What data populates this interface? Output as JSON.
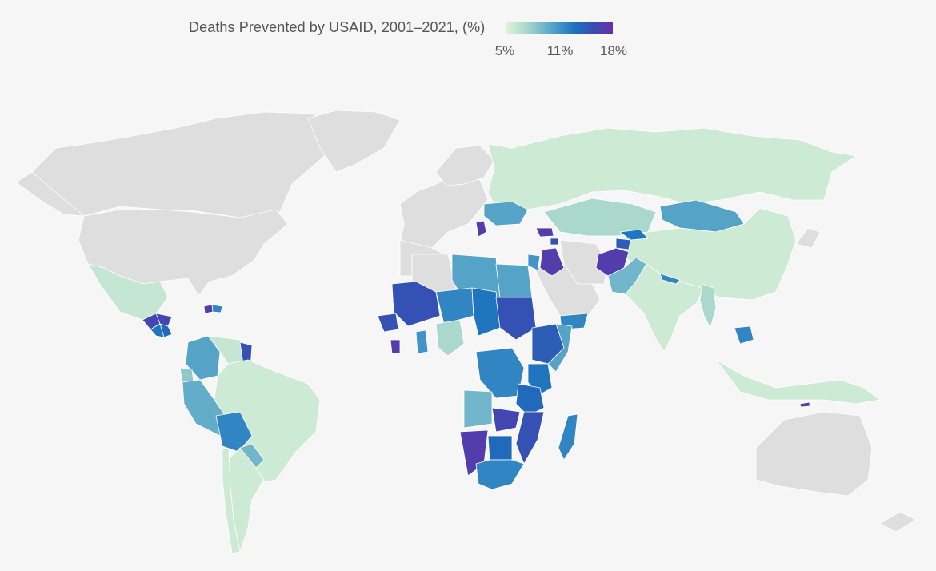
{
  "legend": {
    "title": "Deaths Prevented by USAID, 2001–2021, (%)",
    "ticks": [
      "5%",
      "11%",
      "18%"
    ],
    "tick_values": [
      5,
      11,
      18
    ],
    "domain": [
      3,
      18.5
    ],
    "colors": [
      "#dff3d8",
      "#a8d8cc",
      "#4fa0c8",
      "#1a72be",
      "#3a4cb2",
      "#6a2fa6"
    ]
  },
  "colors": {
    "background": "#f6f6f6",
    "no_data": "#dedede",
    "border": "#ffffff",
    "text": "#555555"
  },
  "map_data": [
    {
      "region": "Mexico",
      "value": 4.5
    },
    {
      "region": "Guatemala",
      "value": 16
    },
    {
      "region": "Honduras",
      "value": 16
    },
    {
      "region": "Nicaragua",
      "value": 13
    },
    {
      "region": "El Salvador",
      "value": 12
    },
    {
      "region": "Haiti",
      "value": 17
    },
    {
      "region": "Dominican Republic",
      "value": 11
    },
    {
      "region": "Colombia",
      "value": 9
    },
    {
      "region": "Venezuela",
      "value": 4.5
    },
    {
      "region": "Guyana",
      "value": 15
    },
    {
      "region": "Ecuador",
      "value": 7
    },
    {
      "region": "Peru",
      "value": 8.5
    },
    {
      "region": "Brazil",
      "value": 4
    },
    {
      "region": "Bolivia",
      "value": 11
    },
    {
      "region": "Paraguay",
      "value": 8
    },
    {
      "region": "Argentina",
      "value": 4
    },
    {
      "region": "Chile",
      "value": 4
    },
    {
      "region": "Russia",
      "value": 4
    },
    {
      "region": "Kazakhstan",
      "value": 6
    },
    {
      "region": "Mongolia",
      "value": 9
    },
    {
      "region": "China",
      "value": 4
    },
    {
      "region": "Kyrgyzstan",
      "value": 12
    },
    {
      "region": "Tajikistan",
      "value": 14
    },
    {
      "region": "Afghanistan",
      "value": 17
    },
    {
      "region": "Pakistan",
      "value": 8
    },
    {
      "region": "India",
      "value": 4
    },
    {
      "region": "Nepal",
      "value": 11
    },
    {
      "region": "Myanmar",
      "value": 6
    },
    {
      "region": "Cambodia",
      "value": 11
    },
    {
      "region": "Indonesia",
      "value": 4
    },
    {
      "region": "Timor-Leste",
      "value": 17
    },
    {
      "region": "Ukraine",
      "value": 9
    },
    {
      "region": "Moldova",
      "value": 17
    },
    {
      "region": "Georgia",
      "value": 17
    },
    {
      "region": "Armenia",
      "value": 15
    },
    {
      "region": "Iraq",
      "value": 17
    },
    {
      "region": "Jordan",
      "value": 10
    },
    {
      "region": "Yemen",
      "value": 11
    },
    {
      "region": "Libya",
      "value": 9
    },
    {
      "region": "Egypt",
      "value": 9
    },
    {
      "region": "Mali",
      "value": 15
    },
    {
      "region": "Niger",
      "value": 11
    },
    {
      "region": "Chad",
      "value": 12
    },
    {
      "region": "Sudan",
      "value": 15
    },
    {
      "region": "Ethiopia",
      "value": 14
    },
    {
      "region": "Somalia",
      "value": 9
    },
    {
      "region": "Nigeria",
      "value": 6
    },
    {
      "region": "Ghana",
      "value": 10
    },
    {
      "region": "Guinea",
      "value": 15
    },
    {
      "region": "Liberia",
      "value": 17
    },
    {
      "region": "DR Congo",
      "value": 11
    },
    {
      "region": "Kenya",
      "value": 12
    },
    {
      "region": "Tanzania",
      "value": 13
    },
    {
      "region": "Angola",
      "value": 8
    },
    {
      "region": "Zambia",
      "value": 16
    },
    {
      "region": "Mozambique",
      "value": 15
    },
    {
      "region": "Namibia",
      "value": 17
    },
    {
      "region": "Botswana",
      "value": 13
    },
    {
      "region": "South Africa",
      "value": 11
    },
    {
      "region": "Madagascar",
      "value": 11
    }
  ]
}
